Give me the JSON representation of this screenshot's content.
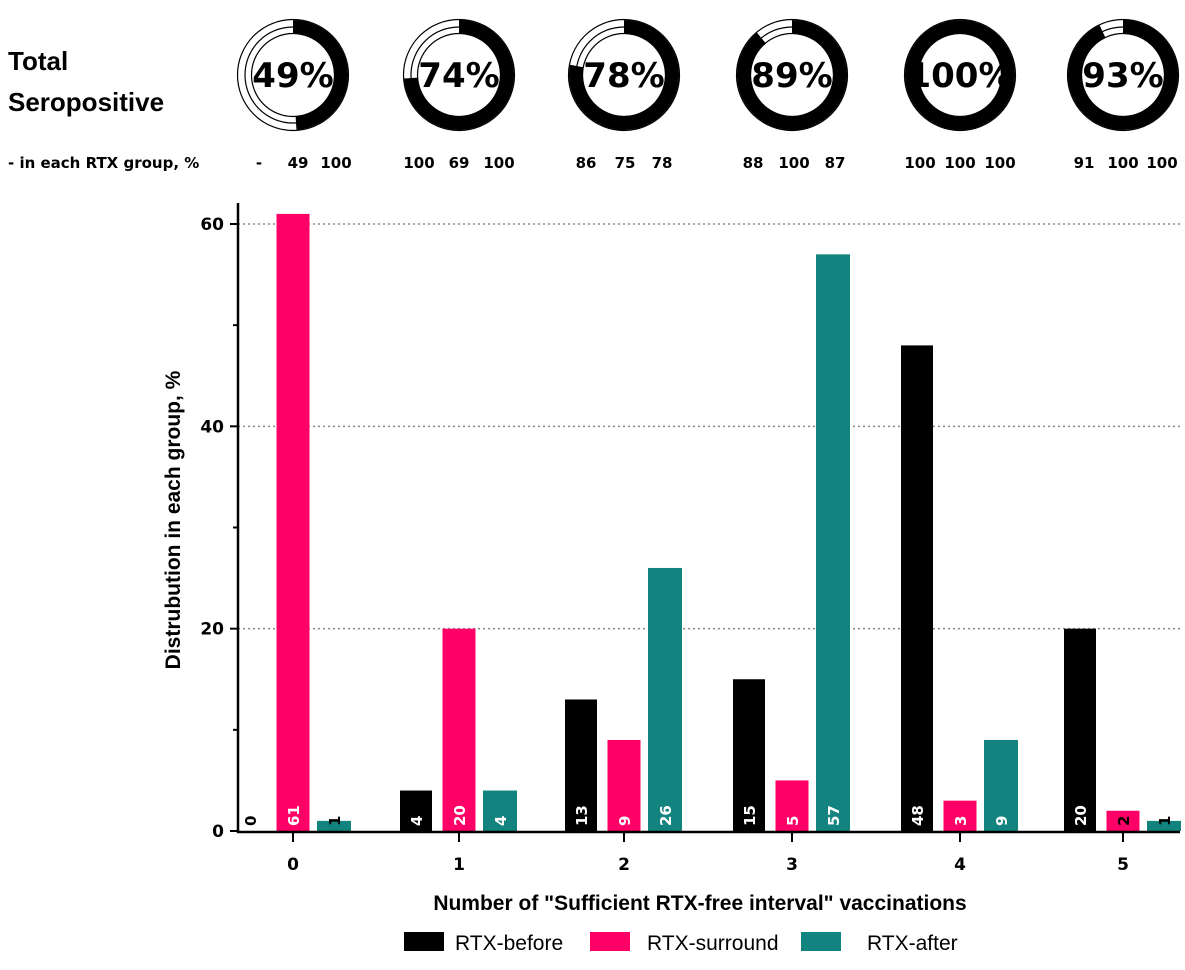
{
  "header": {
    "title_line1": "Total",
    "title_line2": "Seropositive",
    "group_label": "- in each RTX group, %"
  },
  "donuts": [
    {
      "label": "49%",
      "value": 49,
      "groups": [
        "-",
        "49",
        "100"
      ]
    },
    {
      "label": "74%",
      "value": 74,
      "groups": [
        "100",
        "69",
        "100"
      ]
    },
    {
      "label": "78%",
      "value": 78,
      "groups": [
        "86",
        "75",
        "78"
      ]
    },
    {
      "label": "89%",
      "value": 89,
      "groups": [
        "88",
        "100",
        "87"
      ]
    },
    {
      "label": "100%",
      "value": 100,
      "groups": [
        "100",
        "100",
        "100"
      ]
    },
    {
      "label": "93%",
      "value": 93,
      "groups": [
        "91",
        "100",
        "100"
      ]
    }
  ],
  "colors": {
    "RTX-before": "#000000",
    "RTX-surround": "#ff0066",
    "RTX-after": "#138380",
    "grid": "#888888"
  },
  "chart_data": {
    "type": "bar",
    "categories": [
      "0",
      "1",
      "2",
      "3",
      "4",
      "5"
    ],
    "series": [
      {
        "name": "RTX-before",
        "values": [
          0,
          4,
          13,
          15,
          48,
          20
        ]
      },
      {
        "name": "RTX-surround",
        "values": [
          61,
          20,
          9,
          5,
          3,
          2
        ]
      },
      {
        "name": "RTX-after",
        "values": [
          1,
          4,
          26,
          57,
          9,
          1
        ]
      }
    ],
    "xlabel": "Number of \"Sufficient RTX-free interval\" vaccinations",
    "ylabel": "Distrubution in each group, %",
    "ylim": [
      0,
      62
    ],
    "yticks": [
      0,
      20,
      40,
      60
    ],
    "grid": "horizontal dotted",
    "legend": "bottom",
    "bar_labels": "value printed vertically inside each bar"
  }
}
